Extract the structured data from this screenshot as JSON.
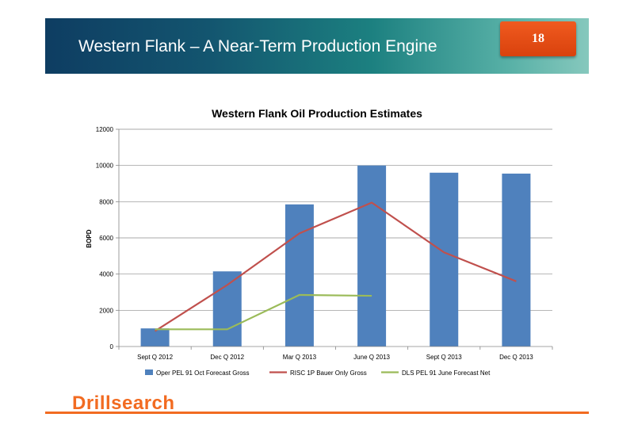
{
  "header": {
    "title": "Western Flank – A Near-Term Production Engine",
    "page_number": "18"
  },
  "footer": {
    "logo_text": "Drillsearch"
  },
  "colors": {
    "bar": "#4f81bd",
    "risc_line": "#c0504d",
    "dls_line": "#9bbb59",
    "accent": "#f26b21"
  },
  "chart_data": {
    "type": "bar",
    "title": "Western Flank Oil Production Estimates",
    "xlabel": "",
    "ylabel": "BOPD",
    "ylim": [
      0,
      12000
    ],
    "yticks": [
      0,
      2000,
      4000,
      6000,
      8000,
      10000,
      12000
    ],
    "categories": [
      "Sept Q 2012",
      "Dec Q 2012",
      "Mar Q 2013",
      "June Q 2013",
      "Sept Q 2013",
      "Dec Q 2013"
    ],
    "grid": true,
    "legend_position": "bottom",
    "series": [
      {
        "name": "Oper PEL 91 Oct Forecast Gross",
        "kind": "bar",
        "values": [
          1000,
          4150,
          7850,
          10000,
          9600,
          9550
        ]
      },
      {
        "name": "RISC 1P Bauer Only Gross",
        "kind": "line",
        "values": [
          850,
          3400,
          6250,
          7950,
          5200,
          3600
        ]
      },
      {
        "name": "DLS PEL 91 June Forecast Net",
        "kind": "line",
        "values": [
          950,
          950,
          2850,
          2800,
          null,
          null
        ]
      }
    ]
  }
}
